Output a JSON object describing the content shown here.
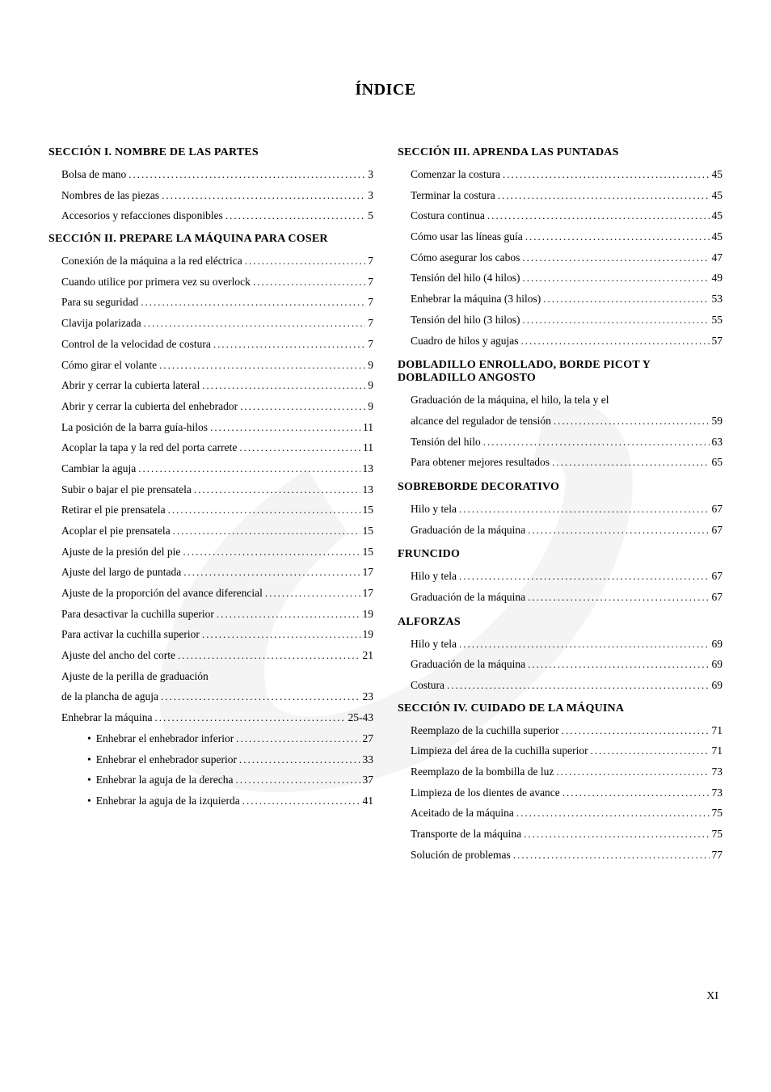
{
  "title": "ÍNDICE",
  "pageNumber": "XI",
  "watermark": {
    "color": "#999999"
  },
  "leftColumn": [
    {
      "type": "heading",
      "text": "SECCIÓN I. NOMBRE DE LAS PARTES"
    },
    {
      "type": "entry",
      "label": "Bolsa de mano",
      "page": "3"
    },
    {
      "type": "entry",
      "label": "Nombres de las piezas",
      "page": "3"
    },
    {
      "type": "entry",
      "label": "Accesorios y refacciones disponibles",
      "page": "5"
    },
    {
      "type": "heading",
      "text": "SECCIÓN II. PREPARE LA MÁQUINA PARA COSER"
    },
    {
      "type": "entry",
      "label": "Conexión de la máquina a la red eléctrica",
      "page": "7"
    },
    {
      "type": "entry",
      "label": "Cuando utilice por primera vez su overlock",
      "page": "7"
    },
    {
      "type": "entry",
      "label": "Para su seguridad",
      "page": "7"
    },
    {
      "type": "entry",
      "label": "Clavija polarizada",
      "page": "7"
    },
    {
      "type": "entry",
      "label": "Control de la velocidad de costura",
      "page": "7"
    },
    {
      "type": "entry",
      "label": "Cómo girar el volante",
      "page": "9"
    },
    {
      "type": "entry",
      "label": "Abrir y cerrar la cubierta lateral",
      "page": "9"
    },
    {
      "type": "entry",
      "label": "Abrir y cerrar la cubierta del enhebrador",
      "page": "9"
    },
    {
      "type": "entry",
      "label": "La posición de la barra guía-hilos",
      "page": "11"
    },
    {
      "type": "entry",
      "label": "Acoplar la tapa y la red del porta carrete",
      "page": "11"
    },
    {
      "type": "entry",
      "label": "Cambiar la aguja",
      "page": "13"
    },
    {
      "type": "entry",
      "label": "Subir o bajar el pie prensatela",
      "page": "13"
    },
    {
      "type": "entry",
      "label": "Retirar el pie prensatela",
      "page": "15"
    },
    {
      "type": "entry",
      "label": "Acoplar el pie prensatela",
      "page": "15"
    },
    {
      "type": "entry",
      "label": "Ajuste de la presión del pie",
      "page": "15"
    },
    {
      "type": "entry",
      "label": "Ajuste del largo de puntada",
      "page": "17"
    },
    {
      "type": "entry",
      "label": "Ajuste de la proporción del avance diferencial",
      "page": "17"
    },
    {
      "type": "entry",
      "label": "Para desactivar la cuchilla superior",
      "page": "19"
    },
    {
      "type": "entry",
      "label": "Para activar la cuchilla superior",
      "page": "19"
    },
    {
      "type": "entry",
      "label": "Ajuste del ancho del corte",
      "page": "21"
    },
    {
      "type": "entry-wrap",
      "label": "Ajuste de la perilla de graduación"
    },
    {
      "type": "entry",
      "label": "de la plancha de aguja",
      "page": "23",
      "noIndent": true
    },
    {
      "type": "entry",
      "label": "Enhebrar la máquina",
      "page": "25-43",
      "noIndent": true
    },
    {
      "type": "bullet",
      "label": "Enhebrar el enhebrador inferior",
      "page": "27"
    },
    {
      "type": "bullet",
      "label": "Enhebrar el enhebrador superior",
      "page": "33"
    },
    {
      "type": "bullet",
      "label": "Enhebrar la aguja de la derecha",
      "page": "37"
    },
    {
      "type": "bullet",
      "label": "Enhebrar la aguja de la izquierda",
      "page": "41"
    }
  ],
  "rightColumn": [
    {
      "type": "heading",
      "text": "SECCIÓN III. APRENDA LAS PUNTADAS"
    },
    {
      "type": "entry",
      "label": "Comenzar la costura",
      "page": "45"
    },
    {
      "type": "entry",
      "label": "Terminar la costura",
      "page": "45"
    },
    {
      "type": "entry",
      "label": "Costura continua",
      "page": "45"
    },
    {
      "type": "entry",
      "label": "Cómo usar las líneas guía",
      "page": "45"
    },
    {
      "type": "entry",
      "label": "Cómo asegurar los cabos",
      "page": "47"
    },
    {
      "type": "entry",
      "label": "Tensión del hilo (4 hilos)",
      "page": "49"
    },
    {
      "type": "entry",
      "label": "Enhebrar la máquina (3 hilos)",
      "page": "53"
    },
    {
      "type": "entry",
      "label": "Tensión del hilo (3 hilos)",
      "page": "55"
    },
    {
      "type": "entry",
      "label": "Cuadro de hilos y agujas",
      "page": "57"
    },
    {
      "type": "subheading",
      "text": "DOBLADILLO ENROLLADO, BORDE PICOT Y DOBLADILLO ANGOSTO"
    },
    {
      "type": "entry-wrap",
      "label": "Graduación de la máquina, el hilo, la tela y el"
    },
    {
      "type": "entry",
      "label": "alcance del regulador de tensión",
      "page": "59"
    },
    {
      "type": "entry",
      "label": "Tensión del hilo",
      "page": "63"
    },
    {
      "type": "entry",
      "label": "Para obtener mejores resultados",
      "page": "65"
    },
    {
      "type": "subheading",
      "text": "SOBREBORDE DECORATIVO"
    },
    {
      "type": "entry",
      "label": "Hilo y tela",
      "page": "67"
    },
    {
      "type": "entry",
      "label": "Graduación de la máquina",
      "page": "67"
    },
    {
      "type": "subheading",
      "text": "FRUNCIDO"
    },
    {
      "type": "entry",
      "label": "Hilo y tela",
      "page": "67"
    },
    {
      "type": "entry",
      "label": "Graduación de la máquina",
      "page": "67"
    },
    {
      "type": "subheading",
      "text": "ALFORZAS"
    },
    {
      "type": "entry",
      "label": "Hilo y tela",
      "page": "69"
    },
    {
      "type": "entry",
      "label": "Graduación de la máquina",
      "page": "69"
    },
    {
      "type": "entry",
      "label": "Costura",
      "page": "69"
    },
    {
      "type": "heading",
      "text": "SECCIÓN IV. CUIDADO DE LA MÁQUINA"
    },
    {
      "type": "entry",
      "label": "Reemplazo de la cuchilla superior",
      "page": "71"
    },
    {
      "type": "entry",
      "label": "Limpieza del área de la cuchilla superior",
      "page": "71"
    },
    {
      "type": "entry",
      "label": "Reemplazo de la bombilla de luz",
      "page": "73"
    },
    {
      "type": "entry",
      "label": "Limpieza de los dientes de avance",
      "page": "73"
    },
    {
      "type": "entry",
      "label": "Aceitado de la máquina",
      "page": "75"
    },
    {
      "type": "entry",
      "label": "Transporte de la máquina",
      "page": "75"
    },
    {
      "type": "entry",
      "label": "Solución de problemas",
      "page": "77"
    }
  ]
}
